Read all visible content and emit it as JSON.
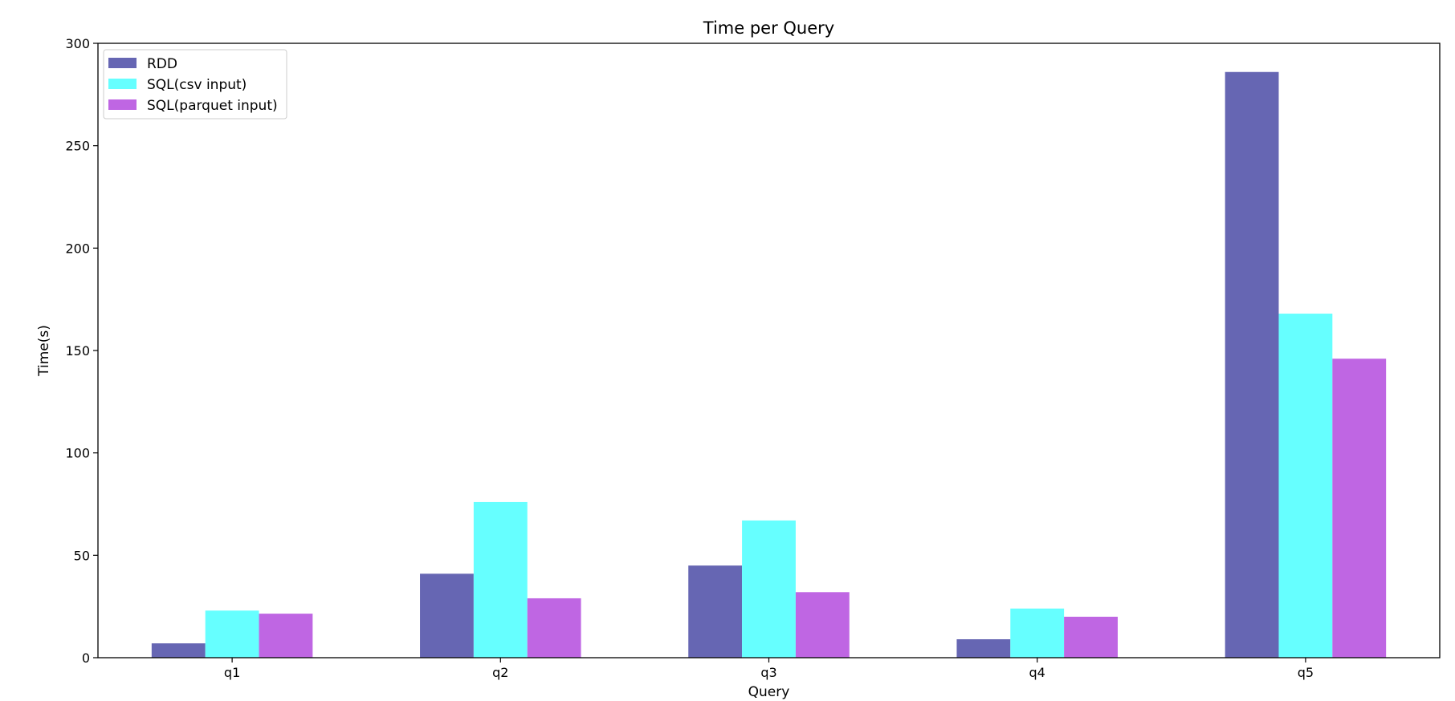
{
  "chart_data": {
    "type": "bar",
    "title": "Time per Query",
    "xlabel": "Query",
    "ylabel": "Time(s)",
    "categories": [
      "q1",
      "q2",
      "q3",
      "q4",
      "q5"
    ],
    "series": [
      {
        "name": "RDD",
        "color": "#6666b3",
        "values": [
          7,
          41,
          45,
          9,
          286
        ]
      },
      {
        "name": "SQL(csv input)",
        "color": "#66ffff",
        "values": [
          23,
          76,
          67,
          24,
          168
        ]
      },
      {
        "name": "SQL(parquet input)",
        "color": "#bf66e3",
        "values": [
          21.5,
          29,
          32,
          20,
          146
        ]
      }
    ],
    "ylim": [
      0,
      300
    ],
    "yticks": [
      "0",
      "50",
      "100",
      "150",
      "200",
      "250",
      "300"
    ],
    "grid": false,
    "legend_position": "top-left"
  }
}
